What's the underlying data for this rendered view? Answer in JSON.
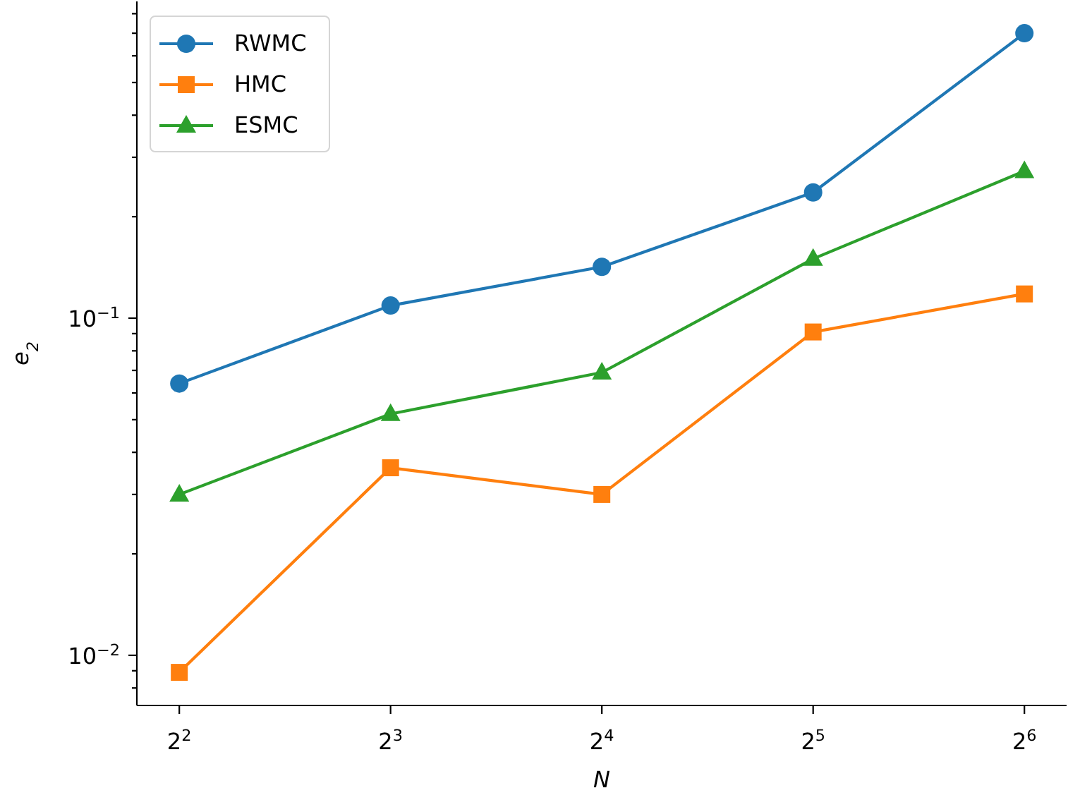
{
  "chart_data": {
    "type": "line",
    "xlabel": "N",
    "ylabel": "e$_{2}$",
    "log": "xy",
    "legend": "top left",
    "line_style": "solid",
    "x": [
      4,
      8,
      16,
      32,
      64
    ],
    "series": [
      {
        "name": "RWMC",
        "color": "#1f77b4",
        "marker": "circle",
        "values": [
          0.064,
          0.109,
          0.142,
          0.236,
          0.7
        ]
      },
      {
        "name": "HMC",
        "color": "#ff7f0e",
        "marker": "square",
        "values": [
          0.0089,
          0.036,
          0.03,
          0.091,
          0.118
        ]
      },
      {
        "name": "ESMC",
        "color": "#2ca02c",
        "marker": "triangle",
        "values": [
          0.03,
          0.052,
          0.069,
          0.15,
          0.273
        ]
      }
    ],
    "xlim": [
      3.48,
      73.5
    ],
    "xticks": [
      {
        "value": 4,
        "label": "2$^{2}$"
      },
      {
        "value": 8,
        "label": "2$^{3}$"
      },
      {
        "value": 16,
        "label": "2$^{4}$"
      },
      {
        "value": 32,
        "label": "2$^{5}$"
      },
      {
        "value": 64,
        "label": "2$^{6}$"
      }
    ],
    "ylim": [
      0.0071,
      0.87
    ],
    "yticks": [
      {
        "value": 0.008,
        "label": null
      },
      {
        "value": 0.009,
        "label": null
      },
      {
        "value": 0.01,
        "label": "10$^{−2}$"
      },
      {
        "value": 0.02,
        "label": null
      },
      {
        "value": 0.03,
        "label": null
      },
      {
        "value": 0.04,
        "label": null
      },
      {
        "value": 0.05,
        "label": null
      },
      {
        "value": 0.06,
        "label": null
      },
      {
        "value": 0.07,
        "label": null
      },
      {
        "value": 0.08,
        "label": null
      },
      {
        "value": 0.09,
        "label": null
      },
      {
        "value": 0.1,
        "label": "10$^{−1}$"
      },
      {
        "value": 0.2,
        "label": null
      },
      {
        "value": 0.3,
        "label": null
      },
      {
        "value": 0.4,
        "label": null
      },
      {
        "value": 0.5,
        "label": null
      },
      {
        "value": 0.6,
        "label": null
      },
      {
        "value": 0.7,
        "label": null
      },
      {
        "value": 0.8,
        "label": null
      }
    ]
  }
}
